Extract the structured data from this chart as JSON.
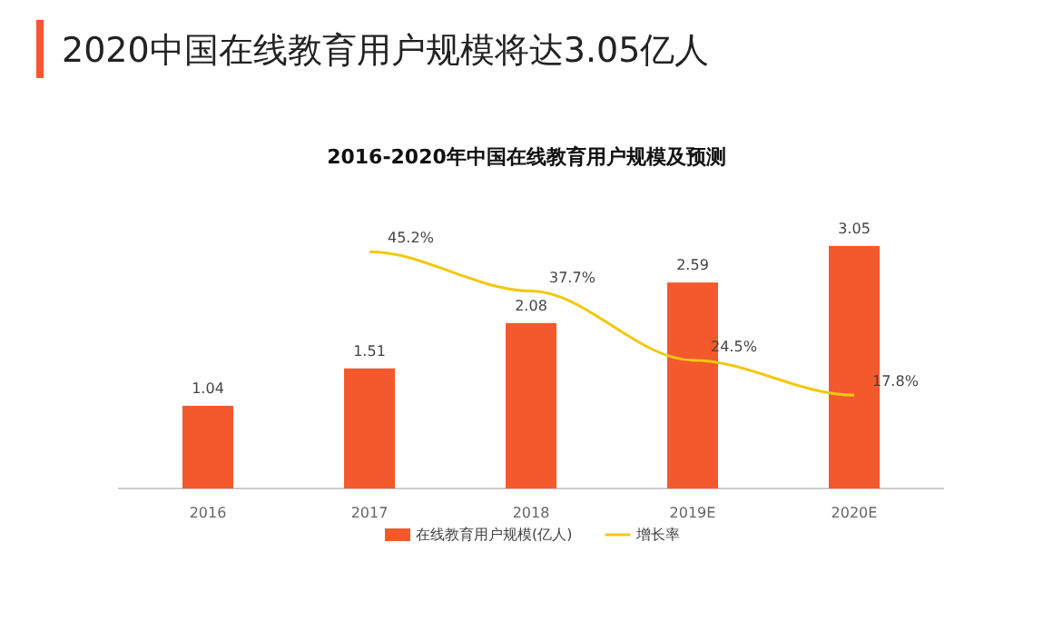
{
  "chart_data": {
    "type": "bar",
    "title": "2020中国在线教育用户规模将达3.05亿人",
    "subtitle": "2016-2020年中国在线教育用户规模及预测",
    "categories": [
      "2016",
      "2017",
      "2018",
      "2019E",
      "2020E"
    ],
    "series": [
      {
        "name": "在线教育用户规模(亿人)",
        "color": "#f4592d",
        "values": [
          1.04,
          1.51,
          2.08,
          2.59,
          3.05
        ],
        "value_labels": [
          "1.04",
          "1.51",
          "2.08",
          "2.59",
          "3.05"
        ]
      },
      {
        "name": "增长率",
        "type": "line",
        "axis": "y2",
        "color": "#f2c811",
        "values": [
          null,
          45.2,
          37.7,
          24.5,
          17.8
        ],
        "value_labels": [
          null,
          "45.2%",
          "37.7%",
          "24.5%",
          "17.8%"
        ]
      }
    ],
    "legend": "bottom"
  }
}
